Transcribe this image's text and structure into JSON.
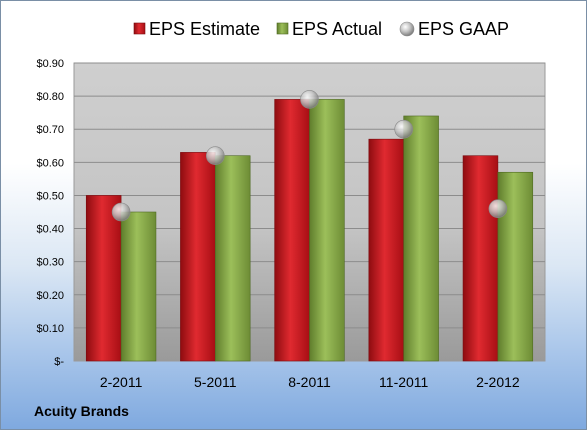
{
  "company": "Acuity Brands",
  "colors": {
    "estimate": "#c8141c",
    "actual": "#84a548",
    "gaap": "#b4b4b4"
  },
  "chart_data": {
    "type": "bar",
    "categories": [
      "2-2011",
      "5-2011",
      "8-2011",
      "11-2011",
      "2-2012"
    ],
    "series": [
      {
        "name": "EPS Estimate",
        "type": "bar",
        "values": [
          0.5,
          0.63,
          0.79,
          0.67,
          0.62
        ]
      },
      {
        "name": "EPS Actual",
        "type": "bar",
        "values": [
          0.45,
          0.62,
          0.79,
          0.74,
          0.57
        ]
      },
      {
        "name": "EPS GAAP",
        "type": "scatter",
        "values": [
          0.45,
          0.62,
          0.79,
          0.7,
          0.46
        ]
      }
    ],
    "yticks": [
      "$-",
      "$0.10",
      "$0.20",
      "$0.30",
      "$0.40",
      "$0.50",
      "$0.60",
      "$0.70",
      "$0.80",
      "$0.90"
    ],
    "ylim": [
      0,
      0.9
    ],
    "grid": true,
    "legend_position": "top"
  }
}
